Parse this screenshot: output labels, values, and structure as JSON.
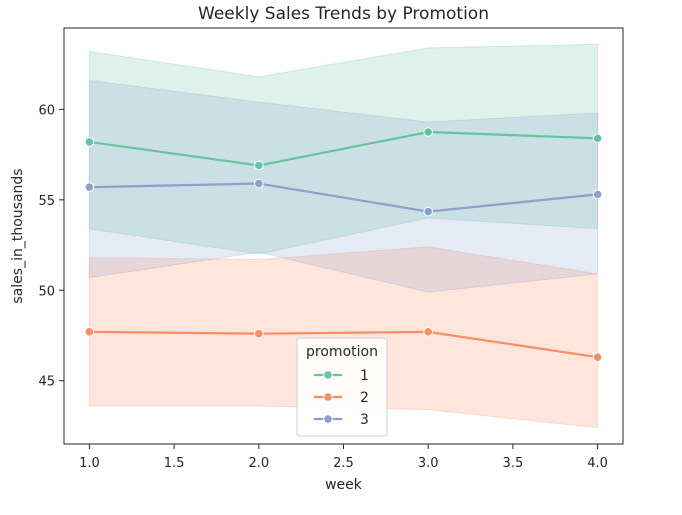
{
  "chart_data": {
    "type": "line",
    "title": "Weekly Sales Trends by Promotion",
    "xlabel": "week",
    "ylabel": "sales_in_thousands",
    "xlim": [
      0.85,
      4.15
    ],
    "ylim": [
      41.5,
      64.5
    ],
    "xticks": [
      1.0,
      1.5,
      2.0,
      2.5,
      3.0,
      3.5,
      4.0
    ],
    "xtick_labels": [
      "1.0",
      "1.5",
      "2.0",
      "2.5",
      "3.0",
      "3.5",
      "4.0"
    ],
    "yticks": [
      45,
      50,
      55,
      60
    ],
    "ytick_labels": [
      "45",
      "50",
      "55",
      "60"
    ],
    "grid": false,
    "legend": {
      "title": "promotion",
      "placement": "lower-center"
    },
    "x": [
      1.0,
      2.0,
      3.0,
      4.0
    ],
    "series": [
      {
        "name": "1",
        "color": "#66c2a5",
        "values": [
          58.2,
          56.9,
          58.75,
          58.4
        ],
        "ci_low": [
          53.4,
          52.0,
          54.0,
          53.4
        ],
        "ci_high": [
          63.2,
          61.8,
          63.4,
          63.6
        ]
      },
      {
        "name": "2",
        "color": "#fc8d62",
        "values": [
          47.7,
          47.6,
          47.7,
          46.3
        ],
        "ci_low": [
          43.6,
          43.6,
          43.4,
          42.4
        ],
        "ci_high": [
          51.8,
          51.7,
          52.4,
          50.9
        ]
      },
      {
        "name": "3",
        "color": "#8da0cb",
        "values": [
          55.7,
          55.9,
          54.35,
          55.3
        ],
        "ci_low": [
          50.7,
          52.1,
          49.9,
          50.9
        ],
        "ci_high": [
          61.6,
          60.4,
          59.3,
          59.8
        ]
      }
    ]
  }
}
